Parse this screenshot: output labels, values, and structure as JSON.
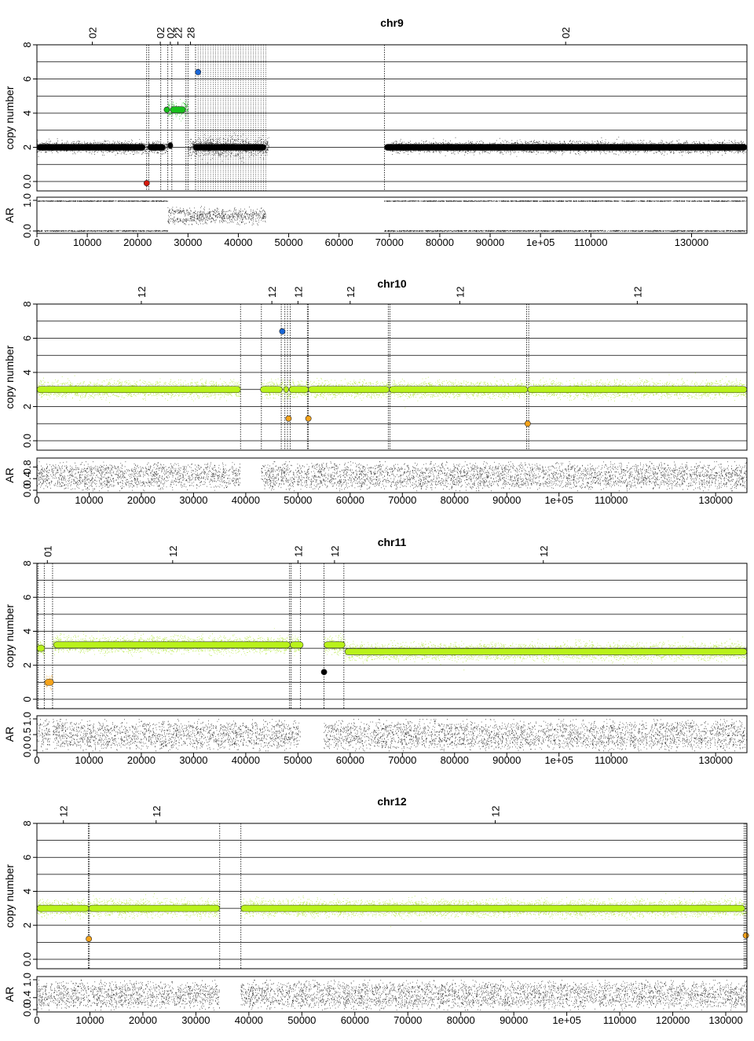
{
  "colors": {
    "raw_black": "#000000",
    "raw_green": "#a8e61d",
    "seg_green": "#b9f21a",
    "red": "#d41a0d",
    "orange": "#f5a31a",
    "blue": "#1a66d6",
    "bright_green": "#17c21a",
    "grid": "#000000"
  },
  "chart_data": [
    {
      "type": "scatter",
      "title": "chr9",
      "ylabel": "copy number",
      "ar_label": "AR",
      "xlim": [
        0,
        141000
      ],
      "ylim": [
        0,
        8
      ],
      "ar_ylim": [
        0,
        1
      ],
      "yticks": [
        "0.0",
        "2",
        "4",
        "6",
        "8"
      ],
      "ar_yticks": [
        "0.0",
        "1.0"
      ],
      "xticks": [
        {
          "v": 0,
          "label": "0"
        },
        {
          "v": 10000,
          "label": "10000"
        },
        {
          "v": 20000,
          "label": "20000"
        },
        {
          "v": 30000,
          "label": "30000"
        },
        {
          "v": 40000,
          "label": "40000"
        },
        {
          "v": 50000,
          "label": "50000"
        },
        {
          "v": 60000,
          "label": "60000"
        },
        {
          "v": 70000,
          "label": "70000"
        },
        {
          "v": 80000,
          "label": "80000"
        },
        {
          "v": 90000,
          "label": "90000"
        },
        {
          "v": 100000,
          "label": "1e+05"
        },
        {
          "v": 110000,
          "label": "110000"
        },
        {
          "v": 130000,
          "label": "130000"
        }
      ],
      "top_labels": [
        {
          "v": 11000,
          "label": "02"
        },
        {
          "v": 24500,
          "label": "02"
        },
        {
          "v": 26500,
          "label": "02"
        },
        {
          "v": 28000,
          "label": "22"
        },
        {
          "v": 30500,
          "label": "28"
        },
        {
          "v": 105000,
          "label": "02"
        }
      ],
      "raw_color": "black",
      "raw_regions": [
        {
          "x": [
            0,
            22000
          ],
          "y": 2.0,
          "spread": 0.35
        },
        {
          "x": [
            22000,
            26000
          ],
          "y": 2.0,
          "spread": 0.35
        },
        {
          "x": [
            26000,
            30000
          ],
          "y": 4.2,
          "spread": 0.5,
          "color": "bright_green"
        },
        {
          "x": [
            30000,
            46000
          ],
          "y": 2.0,
          "spread": 0.6
        },
        {
          "x": [
            70000,
            141000
          ],
          "y": 2.0,
          "spread": 0.35
        }
      ],
      "segments": [
        {
          "x": [
            0,
            21500
          ],
          "y": 2.0,
          "color": "raw_black"
        },
        {
          "x": [
            22000,
            25500
          ],
          "y": 2.0,
          "color": "raw_black"
        },
        {
          "x": [
            26000,
            27000
          ],
          "y": 2.1,
          "color": "raw_black"
        },
        {
          "x": [
            26500,
            29500
          ],
          "y": 4.2,
          "color": "bright_green"
        },
        {
          "x": [
            31000,
            45500
          ],
          "y": 2.0,
          "color": "raw_black"
        },
        {
          "x": [
            69000,
            141000
          ],
          "y": 2.0,
          "color": "raw_black"
        }
      ],
      "points": [
        {
          "x": 21800,
          "y": -0.1,
          "color": "red"
        },
        {
          "x": 32000,
          "y": 6.4,
          "color": "blue"
        },
        {
          "x": 25800,
          "y": 4.2,
          "color": "bright_green"
        }
      ],
      "vlines": [
        21800,
        22200,
        24600,
        26000,
        26800,
        29600,
        30000,
        31500,
        69000
      ],
      "dense_vlines": [
        32000,
        45500
      ],
      "ar_regions": [
        {
          "x": [
            0,
            22000
          ],
          "mode": "edge"
        },
        {
          "x": [
            22000,
            26000
          ],
          "mode": "edge"
        },
        {
          "x": [
            26000,
            30000
          ],
          "mode": "split"
        },
        {
          "x": [
            30000,
            45500
          ],
          "mode": "mid"
        },
        {
          "x": [
            69000,
            141000
          ],
          "mode": "edge"
        }
      ]
    },
    {
      "type": "scatter",
      "title": "chr10",
      "ylabel": "copy number",
      "ar_label": "AR",
      "xlim": [
        0,
        136000
      ],
      "ylim": [
        0,
        8
      ],
      "ar_ylim": [
        0,
        1
      ],
      "yticks": [
        "0.0",
        "2",
        "4",
        "6",
        "8"
      ],
      "ar_yticks": [
        "0.0",
        "0.4",
        "0.8"
      ],
      "xticks": [
        {
          "v": 0,
          "label": "0"
        },
        {
          "v": 10000,
          "label": "10000"
        },
        {
          "v": 20000,
          "label": "20000"
        },
        {
          "v": 30000,
          "label": "30000"
        },
        {
          "v": 40000,
          "label": "40000"
        },
        {
          "v": 50000,
          "label": "50000"
        },
        {
          "v": 60000,
          "label": "60000"
        },
        {
          "v": 70000,
          "label": "70000"
        },
        {
          "v": 80000,
          "label": "80000"
        },
        {
          "v": 90000,
          "label": "90000"
        },
        {
          "v": 100000,
          "label": "1e+05"
        },
        {
          "v": 110000,
          "label": "110000"
        },
        {
          "v": 130000,
          "label": "130000"
        }
      ],
      "top_labels": [
        {
          "v": 20000,
          "label": "12"
        },
        {
          "v": 45000,
          "label": "12"
        },
        {
          "v": 50000,
          "label": "12"
        },
        {
          "v": 60000,
          "label": "12"
        },
        {
          "v": 81000,
          "label": "12"
        },
        {
          "v": 115000,
          "label": "12"
        }
      ],
      "raw_color": "raw_green",
      "raw_regions": [
        {
          "x": [
            0,
            39000
          ],
          "y": 3.0,
          "spread": 0.5
        },
        {
          "x": [
            43000,
            136000
          ],
          "y": 3.0,
          "spread": 0.5
        }
      ],
      "segments": [
        {
          "x": [
            0,
            39000
          ],
          "y": 3.0,
          "color": "seg_green"
        },
        {
          "x": [
            42800,
            47000
          ],
          "y": 3.0,
          "color": "seg_green"
        },
        {
          "x": [
            47300,
            48200
          ],
          "y": 3.0,
          "color": "seg_green"
        },
        {
          "x": [
            48300,
            52000
          ],
          "y": 3.0,
          "color": "seg_green"
        },
        {
          "x": [
            52000,
            67500
          ],
          "y": 3.0,
          "color": "seg_green"
        },
        {
          "x": [
            67500,
            94000
          ],
          "y": 3.0,
          "color": "seg_green"
        },
        {
          "x": [
            94000,
            136000
          ],
          "y": 3.0,
          "color": "seg_green"
        }
      ],
      "points": [
        {
          "x": 47000,
          "y": 6.4,
          "color": "blue"
        },
        {
          "x": 48200,
          "y": 1.3,
          "color": "orange"
        },
        {
          "x": 52000,
          "y": 1.3,
          "color": "orange"
        },
        {
          "x": 94000,
          "y": 1.0,
          "color": "orange"
        }
      ],
      "vlines": [
        39000,
        43000,
        46800,
        47500,
        48000,
        48500,
        51800,
        52000,
        67300,
        67600,
        93800,
        94200
      ],
      "dense_vlines": [],
      "ar_regions": [
        {
          "x": [
            0,
            39000
          ],
          "mode": "full"
        },
        {
          "x": [
            43000,
            136000
          ],
          "mode": "full"
        }
      ]
    },
    {
      "type": "scatter",
      "title": "chr11",
      "ylabel": "copy number",
      "ar_label": "AR",
      "xlim": [
        0,
        136000
      ],
      "ylim": [
        0,
        8
      ],
      "ar_ylim": [
        0,
        1
      ],
      "yticks": [
        "0",
        "2",
        "4",
        "6",
        "8"
      ],
      "ar_yticks": [
        "0.0",
        "0.5",
        "1.0"
      ],
      "xticks": [
        {
          "v": 0,
          "label": "0"
        },
        {
          "v": 10000,
          "label": "10000"
        },
        {
          "v": 20000,
          "label": "20000"
        },
        {
          "v": 30000,
          "label": "30000"
        },
        {
          "v": 40000,
          "label": "40000"
        },
        {
          "v": 50000,
          "label": "50000"
        },
        {
          "v": 60000,
          "label": "60000"
        },
        {
          "v": 70000,
          "label": "70000"
        },
        {
          "v": 80000,
          "label": "80000"
        },
        {
          "v": 90000,
          "label": "90000"
        },
        {
          "v": 100000,
          "label": "1e+05"
        },
        {
          "v": 110000,
          "label": "110000"
        },
        {
          "v": 130000,
          "label": "130000"
        }
      ],
      "top_labels": [
        {
          "v": 2000,
          "label": "01"
        },
        {
          "v": 26000,
          "label": "12"
        },
        {
          "v": 50000,
          "label": "12"
        },
        {
          "v": 57000,
          "label": "12"
        },
        {
          "v": 97000,
          "label": "12"
        }
      ],
      "raw_color": "raw_green",
      "raw_regions": [
        {
          "x": [
            0,
            1500
          ],
          "y": 3.0,
          "spread": 0.4
        },
        {
          "x": [
            1500,
            3000
          ],
          "y": 1.0,
          "spread": 0.4,
          "color": "orange"
        },
        {
          "x": [
            3000,
            50500
          ],
          "y": 3.2,
          "spread": 0.5
        },
        {
          "x": [
            55000,
            59000
          ],
          "y": 3.2,
          "spread": 0.5
        },
        {
          "x": [
            59000,
            136000
          ],
          "y": 2.8,
          "spread": 0.5
        }
      ],
      "segments": [
        {
          "x": [
            0,
            1500
          ],
          "y": 3.0,
          "color": "seg_green"
        },
        {
          "x": [
            1500,
            3200
          ],
          "y": 1.0,
          "color": "orange"
        },
        {
          "x": [
            3200,
            48500
          ],
          "y": 3.2,
          "color": "seg_green"
        },
        {
          "x": [
            48500,
            51000
          ],
          "y": 3.2,
          "color": "seg_green"
        },
        {
          "x": [
            55000,
            59000
          ],
          "y": 3.2,
          "color": "seg_green"
        },
        {
          "x": [
            59000,
            136000
          ],
          "y": 2.8,
          "color": "seg_green"
        }
      ],
      "points": [
        {
          "x": 55000,
          "y": 1.6,
          "color": "raw_black"
        }
      ],
      "vlines": [
        200,
        1400,
        3000,
        48400,
        48700,
        50500,
        55000,
        58800
      ],
      "dense_vlines": [],
      "ar_regions": [
        {
          "x": [
            0,
            2500
          ],
          "mode": "full"
        },
        {
          "x": [
            3000,
            50500
          ],
          "mode": "full"
        },
        {
          "x": [
            55000,
            136000
          ],
          "mode": "full"
        }
      ]
    },
    {
      "type": "scatter",
      "title": "chr12",
      "ylabel": "copy number",
      "ar_label": "AR",
      "xlim": [
        0,
        134000
      ],
      "ylim": [
        0,
        8
      ],
      "ar_ylim": [
        0,
        1
      ],
      "yticks": [
        "0.0",
        "2",
        "4",
        "6",
        "8"
      ],
      "ar_yticks": [
        "0.0",
        "0.4",
        "1.0"
      ],
      "xticks": [
        {
          "v": 0,
          "label": "0"
        },
        {
          "v": 10000,
          "label": "10000"
        },
        {
          "v": 20000,
          "label": "20000"
        },
        {
          "v": 30000,
          "label": "30000"
        },
        {
          "v": 40000,
          "label": "40000"
        },
        {
          "v": 50000,
          "label": "50000"
        },
        {
          "v": 60000,
          "label": "60000"
        },
        {
          "v": 70000,
          "label": "70000"
        },
        {
          "v": 80000,
          "label": "80000"
        },
        {
          "v": 90000,
          "label": "90000"
        },
        {
          "v": 100000,
          "label": "1e+05"
        },
        {
          "v": 110000,
          "label": "110000"
        },
        {
          "v": 120000,
          "label": "120000"
        },
        {
          "v": 130000,
          "label": "130000"
        }
      ],
      "top_labels": [
        {
          "v": 5000,
          "label": "12"
        },
        {
          "v": 22500,
          "label": "12"
        },
        {
          "v": 86500,
          "label": "12"
        }
      ],
      "raw_color": "raw_green",
      "raw_regions": [
        {
          "x": [
            0,
            34500
          ],
          "y": 3.0,
          "spread": 0.5
        },
        {
          "x": [
            38500,
            134000
          ],
          "y": 3.0,
          "spread": 0.5
        }
      ],
      "segments": [
        {
          "x": [
            0,
            9800
          ],
          "y": 3.0,
          "color": "seg_green"
        },
        {
          "x": [
            9800,
            34500
          ],
          "y": 3.0,
          "color": "seg_green"
        },
        {
          "x": [
            38500,
            133600
          ],
          "y": 3.0,
          "color": "seg_green"
        }
      ],
      "points": [
        {
          "x": 9800,
          "y": 1.2,
          "color": "orange"
        },
        {
          "x": 133800,
          "y": 1.4,
          "color": "orange"
        }
      ],
      "vlines": [
        9700,
        9900,
        34500,
        38500,
        133500,
        133800
      ],
      "dense_vlines": [],
      "ar_regions": [
        {
          "x": [
            0,
            34500
          ],
          "mode": "full"
        },
        {
          "x": [
            38500,
            134000
          ],
          "mode": "full"
        }
      ]
    }
  ]
}
